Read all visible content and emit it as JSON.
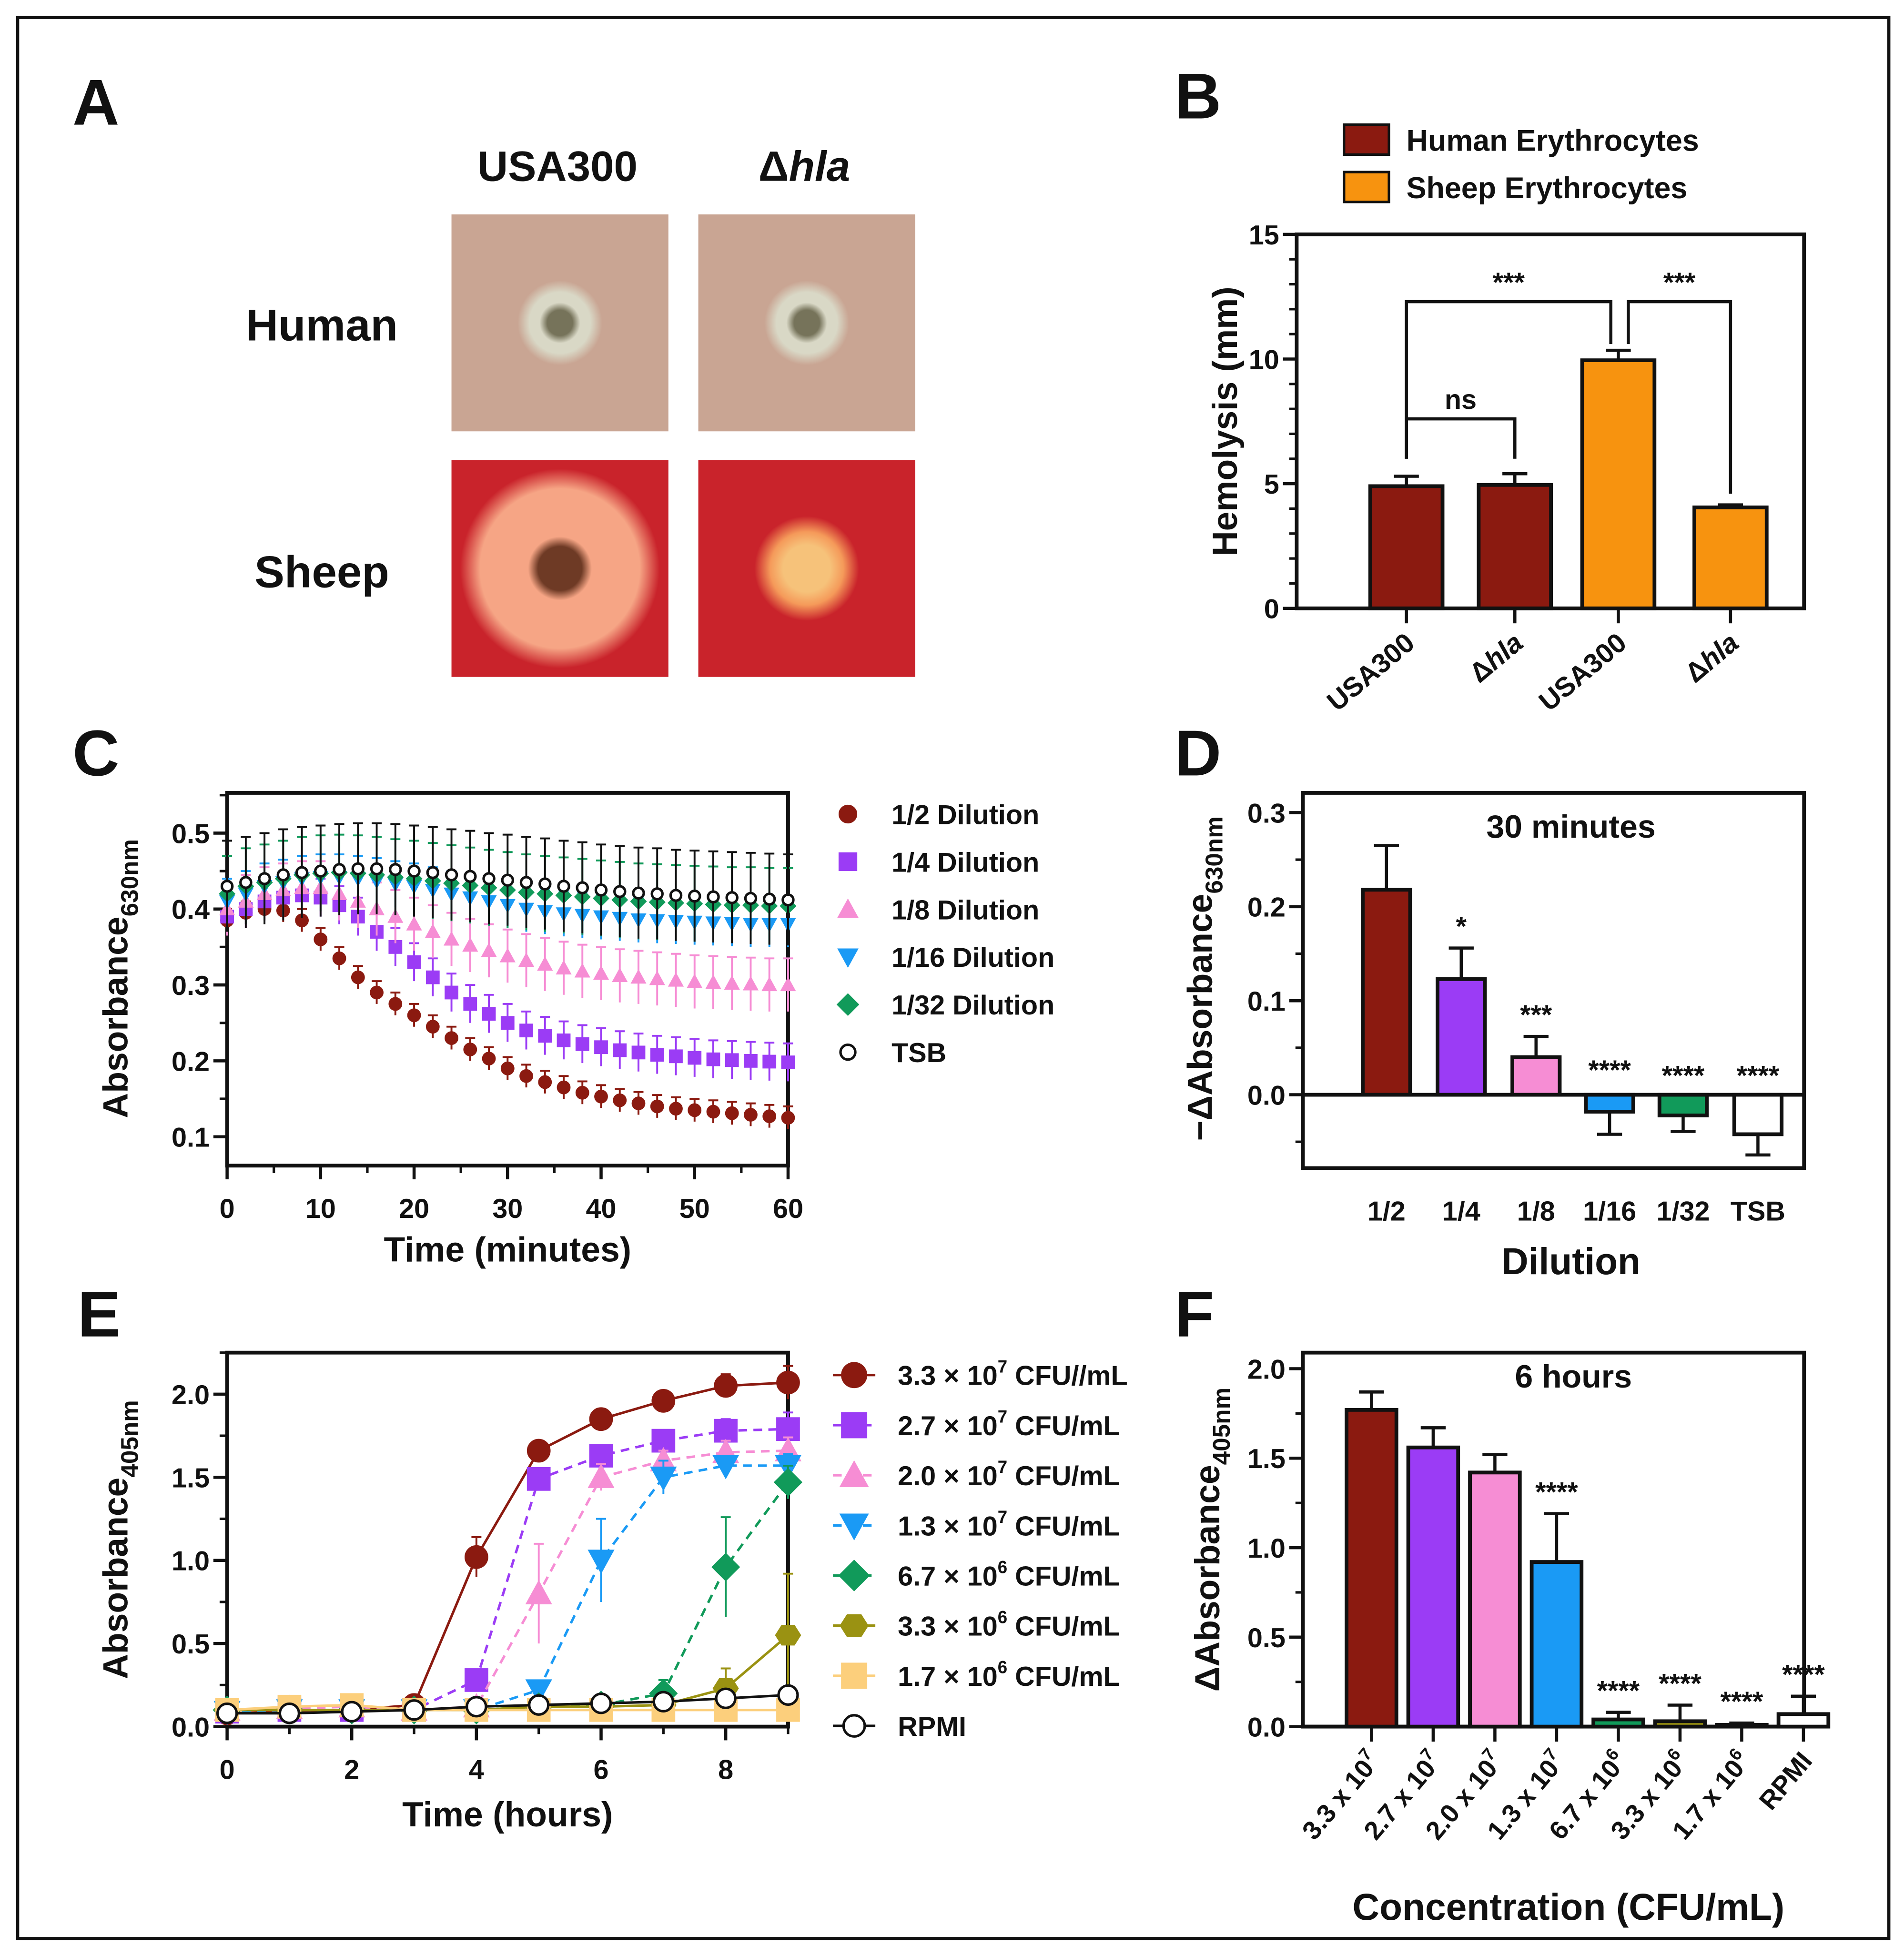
{
  "panel_labels": [
    "A",
    "B",
    "C",
    "D",
    "E",
    "F"
  ],
  "panelA": {
    "columns": [
      {
        "prefix": "USA300",
        "italic": ""
      },
      {
        "prefix": "Δ",
        "italic": "hla"
      }
    ],
    "rows": [
      "Human",
      "Sheep"
    ],
    "colors": {
      "human_bg": "#c9a593",
      "human_halo": "#d9d8c6",
      "human_center": "#76735a",
      "sheep_bg": "#c9232b",
      "sheep_halo_big": "#f6a585",
      "sheep_center": "#6e3a25",
      "sheep_halo_small": "#f6c27a"
    }
  },
  "chart_data": [
    {
      "panel": "B",
      "type": "bar",
      "categories": [
        {
          "prefix": "USA300",
          "italic": ""
        },
        {
          "prefix": "Δ",
          "italic": "hla"
        },
        {
          "prefix": "USA300",
          "italic": ""
        },
        {
          "prefix": "Δ",
          "italic": "hla"
        }
      ],
      "values": [
        4.9,
        4.95,
        9.95,
        4.05
      ],
      "errors": [
        0.4,
        0.45,
        0.4,
        0.1
      ],
      "bar_colors": [
        "#8b1a10",
        "#8b1a10",
        "#f7930f",
        "#f7930f"
      ],
      "legend": [
        {
          "label": "Human Erythrocytes",
          "color": "#8b1a10"
        },
        {
          "label": "Sheep Erythrocytes",
          "color": "#f7930f"
        }
      ],
      "ylabel": "Hemolysis (mm)",
      "ylim": [
        0,
        15
      ],
      "yticks": [
        "0",
        "5",
        "10",
        "15"
      ],
      "significance": [
        {
          "from": 0,
          "to": 1,
          "level": 7.6,
          "label": "ns"
        },
        {
          "from": 0,
          "to": 2,
          "level": 12.3,
          "label": "***"
        },
        {
          "from": 2,
          "to": 3,
          "level": 12.3,
          "label": "***"
        }
      ]
    },
    {
      "panel": "C",
      "type": "line",
      "x": [
        0,
        2,
        4,
        6,
        8,
        10,
        12,
        14,
        16,
        18,
        20,
        22,
        24,
        26,
        28,
        30,
        32,
        34,
        36,
        38,
        40,
        42,
        44,
        46,
        48,
        50,
        52,
        54,
        56,
        58,
        60
      ],
      "series": [
        {
          "name": "1/2 Dilution",
          "color": "#8b1a10",
          "marker": "circle",
          "error": 0.015,
          "values": [
            0.385,
            0.395,
            0.4,
            0.398,
            0.385,
            0.36,
            0.335,
            0.31,
            0.29,
            0.275,
            0.26,
            0.245,
            0.23,
            0.215,
            0.203,
            0.19,
            0.18,
            0.172,
            0.165,
            0.158,
            0.153,
            0.148,
            0.144,
            0.14,
            0.137,
            0.135,
            0.133,
            0.131,
            0.129,
            0.127,
            0.125
          ]
        },
        {
          "name": "1/4 Dilution",
          "color": "#9b3cf5",
          "marker": "square",
          "error": 0.025,
          "values": [
            0.39,
            0.4,
            0.41,
            0.415,
            0.418,
            0.415,
            0.405,
            0.39,
            0.37,
            0.35,
            0.33,
            0.31,
            0.29,
            0.275,
            0.262,
            0.25,
            0.24,
            0.233,
            0.227,
            0.222,
            0.218,
            0.214,
            0.211,
            0.208,
            0.206,
            0.204,
            0.202,
            0.201,
            0.2,
            0.199,
            0.198
          ]
        },
        {
          "name": "1/8 Dilution",
          "color": "#f68dd4",
          "marker": "triangle-up",
          "error": 0.035,
          "values": [
            0.4,
            0.41,
            0.42,
            0.425,
            0.428,
            0.428,
            0.42,
            0.41,
            0.4,
            0.39,
            0.38,
            0.37,
            0.36,
            0.352,
            0.345,
            0.338,
            0.332,
            0.327,
            0.322,
            0.318,
            0.315,
            0.312,
            0.31,
            0.308,
            0.306,
            0.304,
            0.303,
            0.302,
            0.301,
            0.3,
            0.3
          ]
        },
        {
          "name": "1/16 Dilution",
          "color": "#1a9af5",
          "marker": "triangle-down",
          "error": 0.03,
          "values": [
            0.41,
            0.42,
            0.43,
            0.435,
            0.44,
            0.442,
            0.442,
            0.44,
            0.437,
            0.433,
            0.43,
            0.425,
            0.42,
            0.415,
            0.41,
            0.405,
            0.4,
            0.397,
            0.394,
            0.392,
            0.39,
            0.388,
            0.386,
            0.385,
            0.384,
            0.383,
            0.382,
            0.381,
            0.38,
            0.38,
            0.38
          ]
        },
        {
          "name": "1/32 Dilution",
          "color": "#119a5a",
          "marker": "diamond",
          "error": 0.05,
          "values": [
            0.42,
            0.43,
            0.435,
            0.44,
            0.445,
            0.447,
            0.448,
            0.447,
            0.445,
            0.442,
            0.44,
            0.437,
            0.434,
            0.431,
            0.428,
            0.425,
            0.422,
            0.42,
            0.418,
            0.416,
            0.414,
            0.412,
            0.41,
            0.409,
            0.408,
            0.407,
            0.406,
            0.405,
            0.405,
            0.404,
            0.404
          ]
        },
        {
          "name": "TSB",
          "color": "#111111",
          "marker": "open-circle",
          "error": 0.06,
          "values": [
            0.43,
            0.435,
            0.44,
            0.445,
            0.448,
            0.45,
            0.452,
            0.453,
            0.453,
            0.452,
            0.45,
            0.448,
            0.445,
            0.443,
            0.44,
            0.438,
            0.435,
            0.433,
            0.43,
            0.428,
            0.425,
            0.423,
            0.421,
            0.42,
            0.418,
            0.417,
            0.416,
            0.415,
            0.414,
            0.413,
            0.412
          ]
        }
      ],
      "xlabel": "Time (minutes)",
      "ylabel": {
        "main": "Absorbance",
        "sub": "630nm"
      },
      "xlim": [
        0,
        60
      ],
      "ylim": [
        0.062,
        0.553
      ],
      "xticks": [
        "0",
        "10",
        "20",
        "30",
        "40",
        "50",
        "60"
      ],
      "yticks": [
        "0.1",
        "0.2",
        "0.3",
        "0.4",
        "0.5"
      ]
    },
    {
      "panel": "D",
      "type": "bar",
      "title": "30 minutes",
      "categories": [
        "1/2",
        "1/4",
        "1/8",
        "1/16",
        "1/32",
        "TSB"
      ],
      "values": [
        0.218,
        0.123,
        0.04,
        -0.018,
        -0.022,
        -0.042
      ],
      "errors": [
        0.047,
        0.033,
        0.022,
        0.024,
        0.017,
        0.022
      ],
      "bar_colors": [
        "#8b1a10",
        "#9b3cf5",
        "#f68dd4",
        "#1a9af5",
        "#119a5a",
        "#ffffff"
      ],
      "stars": [
        "",
        "*",
        "***",
        "****",
        "****",
        "****"
      ],
      "xlabel": "Dilution",
      "ylabel": {
        "main": "−ΔAbsorbance",
        "sub": "630nm"
      },
      "ylim": [
        -0.078,
        0.321
      ],
      "yticks": [
        "0.0",
        "0.1",
        "0.2",
        "0.3"
      ]
    },
    {
      "panel": "E",
      "type": "line",
      "x": [
        0,
        1,
        2,
        3,
        4,
        5,
        6,
        7,
        8,
        9
      ],
      "series": [
        {
          "name": {
            "base": "3.3 × 10",
            "exp": "7",
            "unit": " CFU//mL"
          },
          "color": "#8b1a10",
          "marker": "circle",
          "dash": false,
          "values": [
            0.08,
            0.09,
            0.1,
            0.13,
            1.02,
            1.66,
            1.85,
            1.96,
            2.05,
            2.07
          ],
          "errors": [
            0.02,
            0.02,
            0.02,
            0.03,
            0.12,
            0.04,
            0.06,
            0.04,
            0.07,
            0.1
          ]
        },
        {
          "name": {
            "base": "2.7 × 10",
            "exp": "7",
            "unit": " CFU/mL"
          },
          "color": "#9b3cf5",
          "marker": "square",
          "dash": true,
          "values": [
            0.09,
            0.1,
            0.1,
            0.1,
            0.28,
            1.49,
            1.63,
            1.72,
            1.78,
            1.79
          ],
          "errors": [
            0.02,
            0.02,
            0.02,
            0.02,
            0.05,
            0.05,
            0.06,
            0.06,
            0.07,
            0.1
          ]
        },
        {
          "name": {
            "base": "2.0 × 10",
            "exp": "7",
            "unit": " CFU/mL"
          },
          "color": "#f68dd4",
          "marker": "triangle-up",
          "dash": true,
          "values": [
            0.1,
            0.11,
            0.12,
            0.1,
            0.12,
            0.8,
            1.5,
            1.6,
            1.65,
            1.66
          ],
          "errors": [
            0.02,
            0.02,
            0.02,
            0.02,
            0.03,
            0.3,
            0.08,
            0.06,
            0.07,
            0.08
          ]
        },
        {
          "name": {
            "base": "1.3 × 10",
            "exp": "7",
            "unit": " CFU/mL"
          },
          "color": "#1a9af5",
          "marker": "triangle-down",
          "dash": true,
          "values": [
            0.09,
            0.1,
            0.1,
            0.1,
            0.1,
            0.22,
            1.0,
            1.5,
            1.57,
            1.57
          ],
          "errors": [
            0.02,
            0.02,
            0.02,
            0.02,
            0.02,
            0.05,
            0.25,
            0.1,
            0.06,
            0.07
          ]
        },
        {
          "name": {
            "base": "6.7 × 10",
            "exp": "6",
            "unit": " CFU/mL"
          },
          "color": "#119a5a",
          "marker": "diamond",
          "dash": true,
          "values": [
            0.1,
            0.1,
            0.1,
            0.1,
            0.1,
            0.12,
            0.13,
            0.2,
            0.96,
            1.47
          ],
          "errors": [
            0.02,
            0.02,
            0.02,
            0.02,
            0.02,
            0.02,
            0.03,
            0.08,
            0.3,
            0.1
          ]
        },
        {
          "name": {
            "base": "3.3 × 10",
            "exp": "6",
            "unit": " CFU/mL"
          },
          "color": "#9a9212",
          "marker": "hexagon",
          "dash": false,
          "values": [
            0.1,
            0.1,
            0.1,
            0.1,
            0.1,
            0.12,
            0.12,
            0.13,
            0.23,
            0.55
          ],
          "errors": [
            0.02,
            0.02,
            0.02,
            0.02,
            0.02,
            0.02,
            0.02,
            0.03,
            0.12,
            0.37
          ]
        },
        {
          "name": {
            "base": "1.7 × 10",
            "exp": "6",
            "unit": " CFU/mL"
          },
          "color": "#fccf7c",
          "marker": "square",
          "dash": false,
          "values": [
            0.1,
            0.12,
            0.13,
            0.1,
            0.1,
            0.1,
            0.1,
            0.1,
            0.1,
            0.1
          ],
          "errors": [
            0.02,
            0.02,
            0.02,
            0.02,
            0.02,
            0.02,
            0.02,
            0.02,
            0.02,
            0.02
          ]
        },
        {
          "name": {
            "base": "RPMI",
            "exp": "",
            "unit": ""
          },
          "color": "#111111",
          "marker": "open-circle",
          "dash": false,
          "values": [
            0.08,
            0.08,
            0.09,
            0.1,
            0.12,
            0.13,
            0.14,
            0.15,
            0.17,
            0.19
          ],
          "errors": [
            0.01,
            0.01,
            0.01,
            0.01,
            0.01,
            0.01,
            0.01,
            0.01,
            0.02,
            0.02
          ]
        }
      ],
      "xlabel": "Time (hours)",
      "ylabel": {
        "main": "Absorbance",
        "sub": "405nm"
      },
      "xlim": [
        0,
        9
      ],
      "ylim": [
        0,
        2.25
      ],
      "xticks": [
        "0",
        "2",
        "4",
        "6",
        "8"
      ],
      "yticks": [
        "0.0",
        "0.5",
        "1.0",
        "1.5",
        "2.0"
      ]
    },
    {
      "panel": "F",
      "type": "bar",
      "title": "6 hours",
      "categories": [
        {
          "base": "3.3 x 10",
          "exp": "7"
        },
        {
          "base": "2.7 x 10",
          "exp": "7"
        },
        {
          "base": "2.0 x 10",
          "exp": "7"
        },
        {
          "base": "1.3 x 10",
          "exp": "7"
        },
        {
          "base": "6.7 x 10",
          "exp": "6"
        },
        {
          "base": "3.3 x 10",
          "exp": "6"
        },
        {
          "base": "1.7 x 10",
          "exp": "6"
        },
        {
          "base": "RPMI",
          "exp": ""
        }
      ],
      "values": [
        1.77,
        1.56,
        1.42,
        0.92,
        0.04,
        0.03,
        0.01,
        0.07
      ],
      "errors": [
        0.1,
        0.11,
        0.1,
        0.27,
        0.04,
        0.09,
        0.01,
        0.1
      ],
      "bar_colors": [
        "#8b1a10",
        "#9b3cf5",
        "#f68dd4",
        "#1a9af5",
        "#119a5a",
        "#9a9212",
        "#fccf7c",
        "#ffffff"
      ],
      "stars": [
        "",
        "",
        "",
        "****",
        "****",
        "****",
        "****",
        "****"
      ],
      "xlabel": "Concentration (CFU/mL)",
      "ylabel": {
        "main": "ΔAbsorbance",
        "sub": "405nm"
      },
      "ylim": [
        0,
        2.09
      ],
      "yticks": [
        "0.0",
        "0.5",
        "1.0",
        "1.5",
        "2.0"
      ]
    }
  ]
}
